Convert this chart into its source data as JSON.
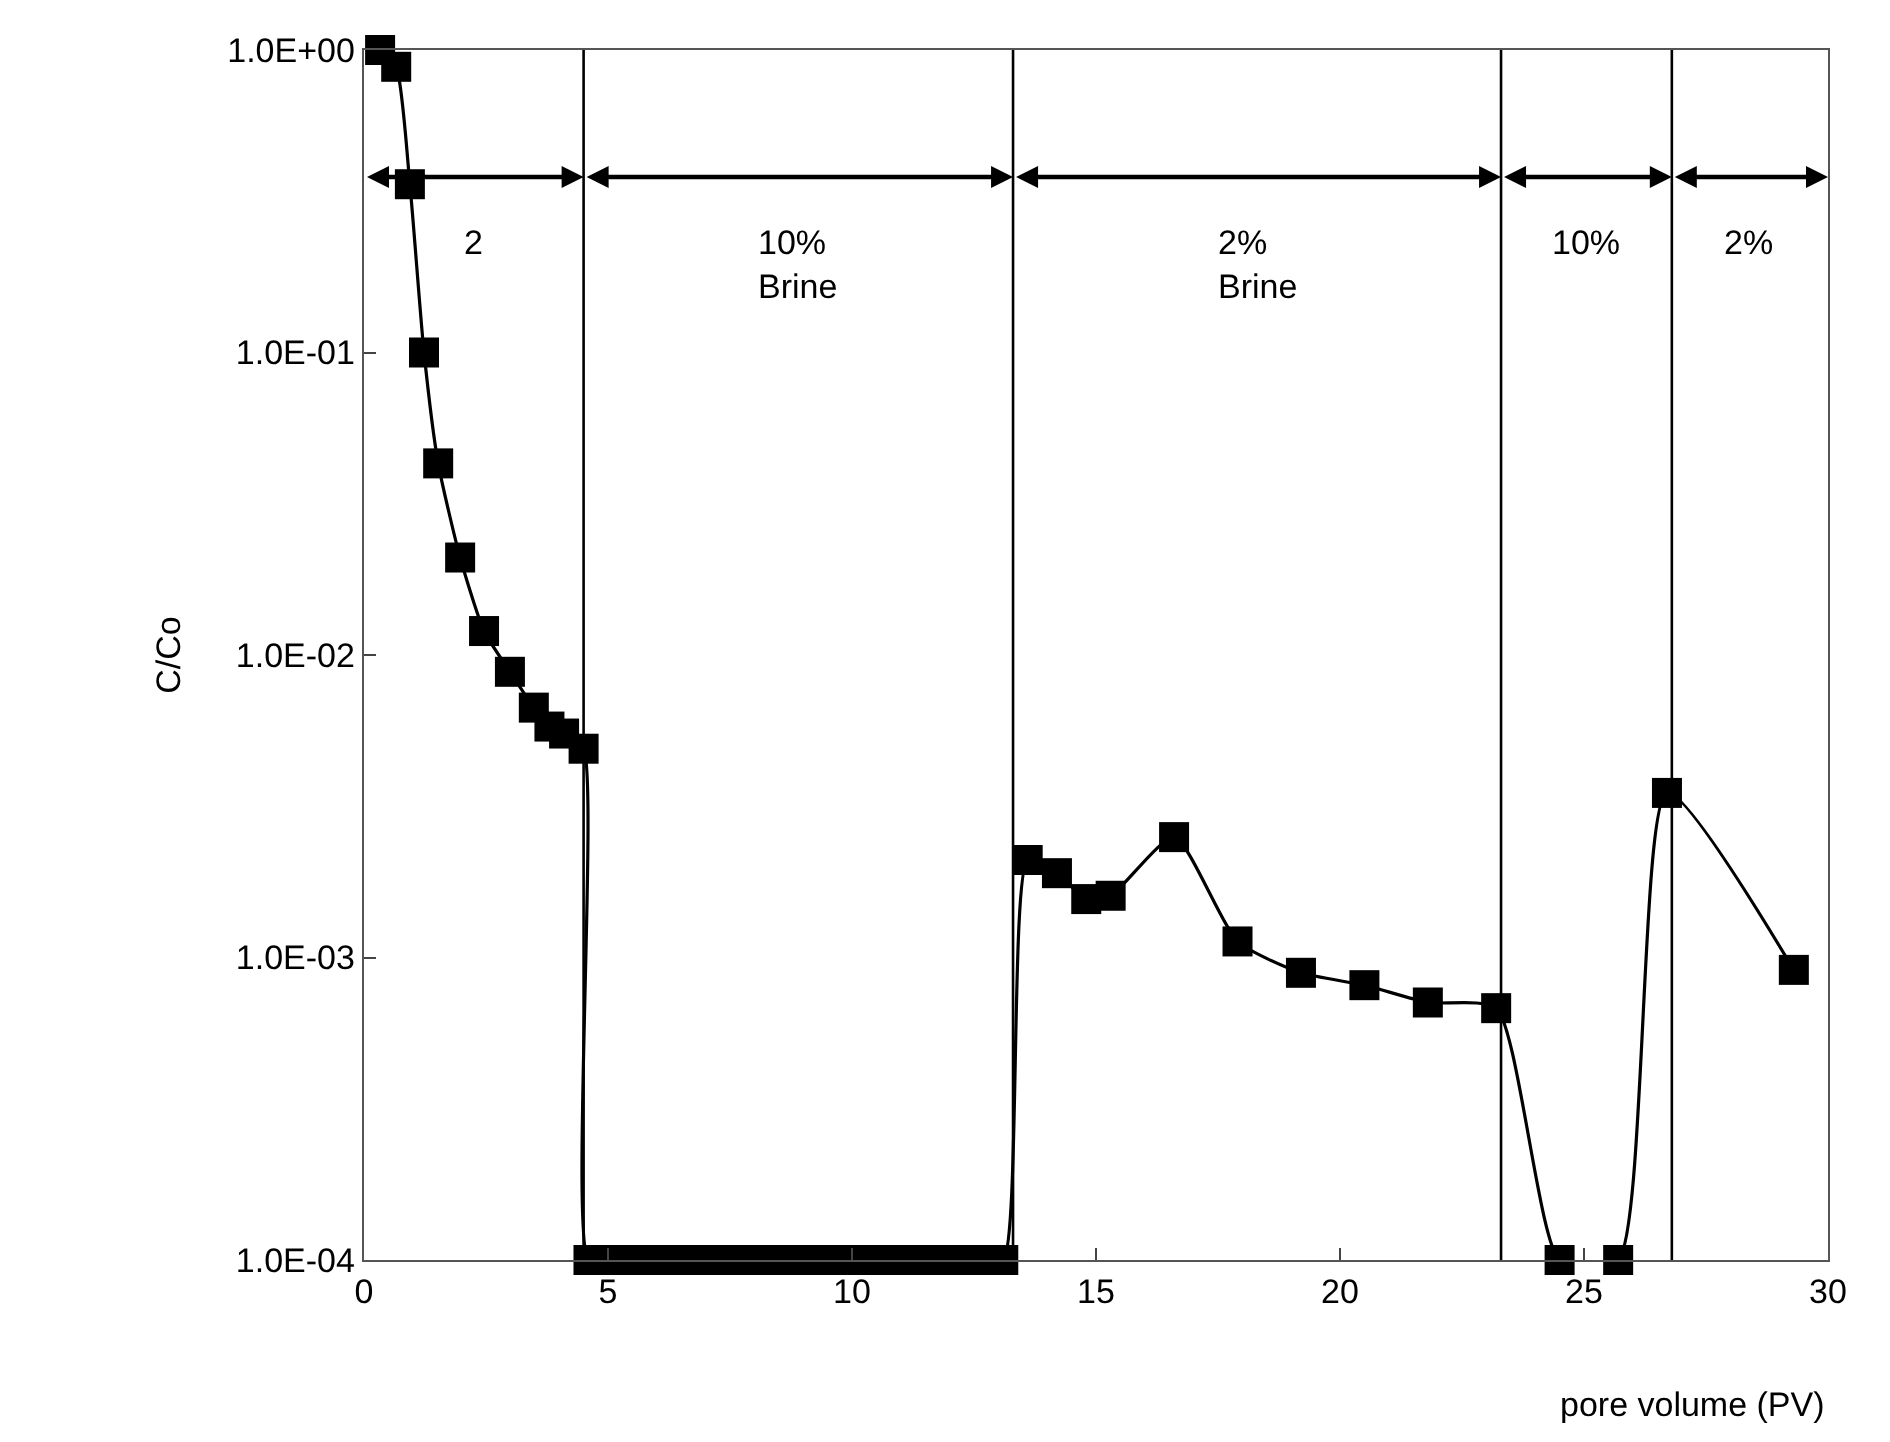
{
  "chart_data": {
    "type": "line",
    "xlabel": "pore volume (PV)",
    "ylabel": "C/Co",
    "log": "y",
    "marker": "square",
    "line_style": "solid",
    "grid": false,
    "legend": false,
    "xlim": [
      0,
      30
    ],
    "xticks": [
      0,
      5,
      10,
      15,
      20,
      25,
      30
    ],
    "ylim": [
      0.0001,
      1
    ],
    "yticks": [
      {
        "value": 0.0001,
        "label": "1.0E-04"
      },
      {
        "value": 0.001,
        "label": "1.0E-03"
      },
      {
        "value": 0.01,
        "label": "1.0E-02"
      },
      {
        "value": 0.1,
        "label": "1.0E-01"
      },
      {
        "value": 1,
        "label": "1.0E+00"
      }
    ],
    "series": [
      {
        "color": "#000000",
        "x": [
          0.33,
          0.66,
          0.94,
          1.23,
          1.52,
          1.97,
          2.46,
          2.99,
          3.48,
          3.8,
          4.1,
          4.5,
          4.6,
          5.1,
          5.6,
          6.1,
          6.6,
          7.1,
          7.6,
          8.1,
          8.6,
          9.1,
          9.6,
          10.1,
          10.6,
          11.1,
          11.6,
          12.1,
          12.6,
          13.1,
          13.6,
          14.2,
          14.8,
          15.3,
          16.6,
          17.9,
          19.2,
          20.5,
          21.8,
          23.2,
          24.5,
          25.7,
          26.7,
          29.3
        ],
        "values": [
          1.0,
          0.88,
          0.36,
          0.1,
          0.043,
          0.021,
          0.012,
          0.0088,
          0.0067,
          0.0058,
          0.0055,
          0.0049,
          0.0001,
          0.0001,
          0.0001,
          0.0001,
          0.0001,
          0.0001,
          0.0001,
          0.0001,
          0.0001,
          0.0001,
          0.0001,
          0.0001,
          0.0001,
          0.0001,
          0.0001,
          0.0001,
          0.0001,
          0.0001,
          0.0021,
          0.0019,
          0.00156,
          0.0016,
          0.0025,
          0.00113,
          0.00089,
          0.00081,
          0.00071,
          0.00068,
          0.0001,
          0.0001,
          0.0035,
          0.00091
        ]
      }
    ],
    "ref_lines": [
      {
        "axis": "x",
        "value": 4.5,
        "color": "#000000"
      },
      {
        "axis": "x",
        "value": 13.3,
        "color": "#000000"
      },
      {
        "axis": "x",
        "value": 23.3,
        "color": "#000000"
      },
      {
        "axis": "x",
        "value": 26.8,
        "color": "#000000"
      }
    ],
    "annotations": [
      "2",
      "10%\nBrine",
      "2%\nBrine",
      "10%",
      "2%"
    ]
  }
}
